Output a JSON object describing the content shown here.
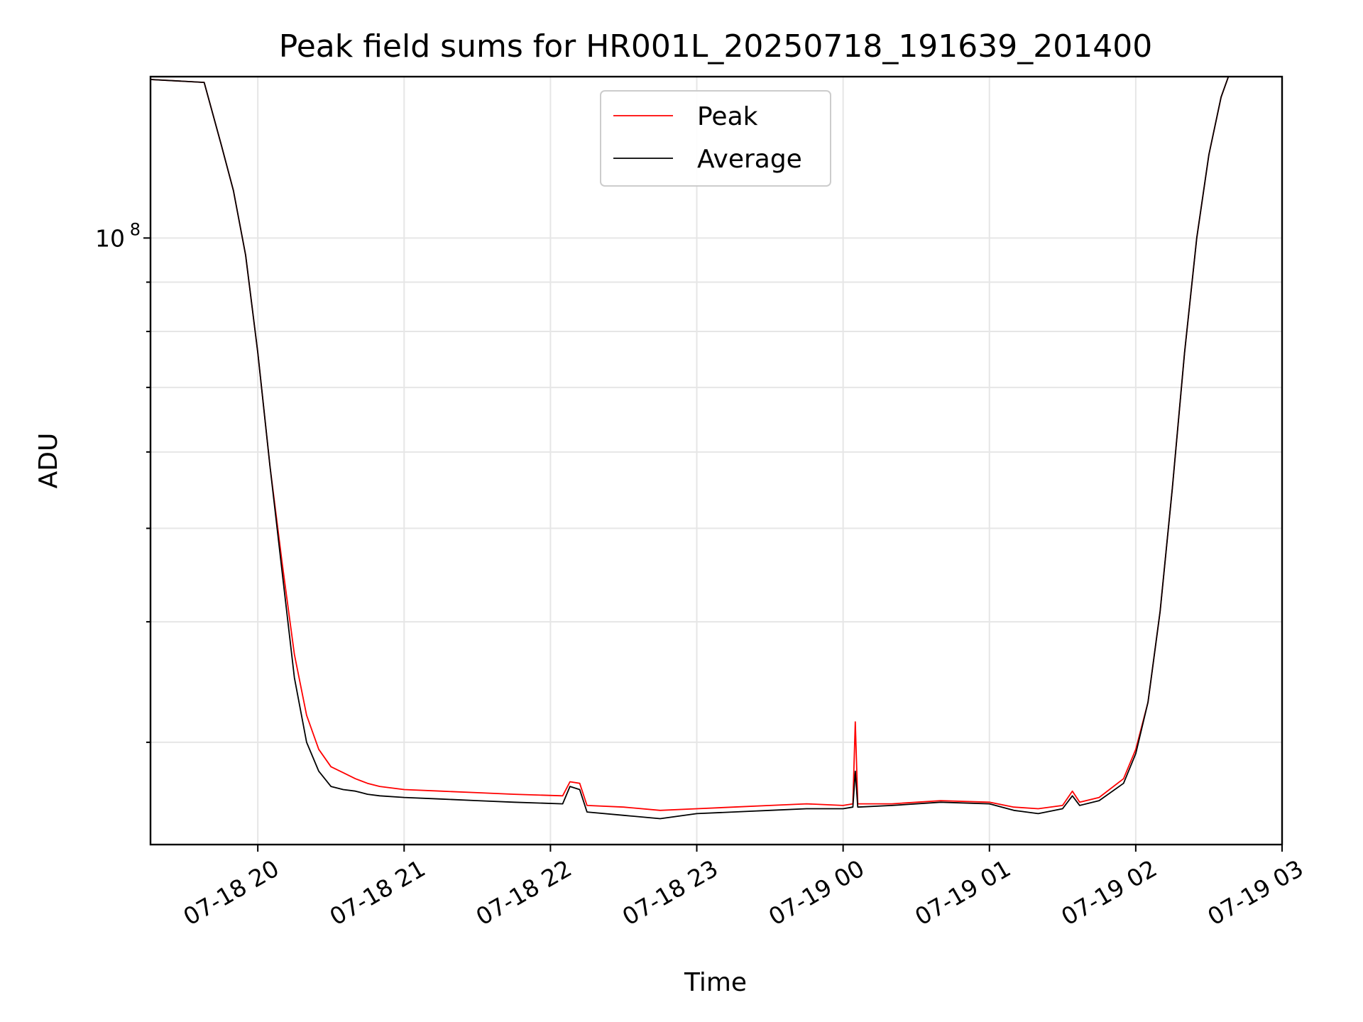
{
  "chart_data": {
    "type": "line",
    "title": "Peak field sums for HR001L_20250718_191639_201400",
    "xlabel": "Time",
    "ylabel": "ADU",
    "y_scale": "log",
    "y_major_tick_label": {
      "base": "10",
      "exponent": "8"
    },
    "xlim": [
      "2025-07-18 19:16",
      "2025-07-19 03:00"
    ],
    "ylim": [
      23500000,
      147000000
    ],
    "x_tick_labels": [
      "07-18 20",
      "07-18 21",
      "07-18 22",
      "07-18 23",
      "07-19 00",
      "07-19 01",
      "07-19 02",
      "07-19 03"
    ],
    "grid": true,
    "legend": {
      "position": "top-center"
    },
    "series": [
      {
        "name": "Peak",
        "color": "#ff0000",
        "points": [
          [
            "2025-07-18 19:16",
            146000000
          ],
          [
            "2025-07-18 19:38",
            145000000
          ],
          [
            "2025-07-18 19:45",
            125000000
          ],
          [
            "2025-07-18 19:50",
            112000000
          ],
          [
            "2025-07-18 19:55",
            96000000
          ],
          [
            "2025-07-18 20:00",
            76000000
          ],
          [
            "2025-07-18 20:05",
            58000000
          ],
          [
            "2025-07-18 20:10",
            46000000
          ],
          [
            "2025-07-18 20:15",
            37000000
          ],
          [
            "2025-07-18 20:20",
            32000000
          ],
          [
            "2025-07-18 20:25",
            29500000
          ],
          [
            "2025-07-18 20:30",
            28300000
          ],
          [
            "2025-07-18 20:35",
            27900000
          ],
          [
            "2025-07-18 20:40",
            27500000
          ],
          [
            "2025-07-18 20:45",
            27200000
          ],
          [
            "2025-07-18 20:50",
            27000000
          ],
          [
            "2025-07-18 21:00",
            26800000
          ],
          [
            "2025-07-18 21:15",
            26700000
          ],
          [
            "2025-07-18 21:30",
            26600000
          ],
          [
            "2025-07-18 21:45",
            26500000
          ],
          [
            "2025-07-18 22:05",
            26400000
          ],
          [
            "2025-07-18 22:08",
            27300000
          ],
          [
            "2025-07-18 22:12",
            27200000
          ],
          [
            "2025-07-18 22:15",
            25800000
          ],
          [
            "2025-07-18 22:30",
            25700000
          ],
          [
            "2025-07-18 22:45",
            25500000
          ],
          [
            "2025-07-18 23:00",
            25600000
          ],
          [
            "2025-07-18 23:15",
            25700000
          ],
          [
            "2025-07-18 23:30",
            25800000
          ],
          [
            "2025-07-18 23:45",
            25900000
          ],
          [
            "2025-07-19 00:00",
            25800000
          ],
          [
            "2025-07-19 00:04",
            25900000
          ],
          [
            "2025-07-19 00:05",
            31500000
          ],
          [
            "2025-07-19 00:06",
            25900000
          ],
          [
            "2025-07-19 00:20",
            25900000
          ],
          [
            "2025-07-19 00:40",
            26100000
          ],
          [
            "2025-07-19 01:00",
            26000000
          ],
          [
            "2025-07-19 01:10",
            25700000
          ],
          [
            "2025-07-19 01:20",
            25600000
          ],
          [
            "2025-07-19 01:30",
            25800000
          ],
          [
            "2025-07-19 01:34",
            26700000
          ],
          [
            "2025-07-19 01:37",
            26000000
          ],
          [
            "2025-07-19 01:45",
            26300000
          ],
          [
            "2025-07-19 01:55",
            27500000
          ],
          [
            "2025-07-19 02:00",
            29500000
          ],
          [
            "2025-07-19 02:05",
            33000000
          ],
          [
            "2025-07-19 02:10",
            41000000
          ],
          [
            "2025-07-19 02:15",
            55000000
          ],
          [
            "2025-07-19 02:20",
            76000000
          ],
          [
            "2025-07-19 02:25",
            100000000
          ],
          [
            "2025-07-19 02:30",
            122000000
          ],
          [
            "2025-07-19 02:35",
            140000000
          ],
          [
            "2025-07-19 02:38",
            147000000
          ]
        ]
      },
      {
        "name": "Average",
        "color": "#000000",
        "points": [
          [
            "2025-07-18 19:16",
            146000000
          ],
          [
            "2025-07-18 19:38",
            145000000
          ],
          [
            "2025-07-18 19:45",
            125000000
          ],
          [
            "2025-07-18 19:50",
            112000000
          ],
          [
            "2025-07-18 19:55",
            96000000
          ],
          [
            "2025-07-18 20:00",
            76000000
          ],
          [
            "2025-07-18 20:05",
            58000000
          ],
          [
            "2025-07-18 20:10",
            45000000
          ],
          [
            "2025-07-18 20:15",
            35000000
          ],
          [
            "2025-07-18 20:20",
            30000000
          ],
          [
            "2025-07-18 20:25",
            28000000
          ],
          [
            "2025-07-18 20:30",
            27000000
          ],
          [
            "2025-07-18 20:35",
            26800000
          ],
          [
            "2025-07-18 20:40",
            26700000
          ],
          [
            "2025-07-18 20:45",
            26500000
          ],
          [
            "2025-07-18 20:50",
            26400000
          ],
          [
            "2025-07-18 21:00",
            26300000
          ],
          [
            "2025-07-18 21:15",
            26200000
          ],
          [
            "2025-07-18 21:30",
            26100000
          ],
          [
            "2025-07-18 21:45",
            26000000
          ],
          [
            "2025-07-18 22:05",
            25900000
          ],
          [
            "2025-07-18 22:08",
            27000000
          ],
          [
            "2025-07-18 22:12",
            26800000
          ],
          [
            "2025-07-18 22:15",
            25400000
          ],
          [
            "2025-07-18 22:30",
            25200000
          ],
          [
            "2025-07-18 22:45",
            25000000
          ],
          [
            "2025-07-18 23:00",
            25300000
          ],
          [
            "2025-07-18 23:15",
            25400000
          ],
          [
            "2025-07-18 23:30",
            25500000
          ],
          [
            "2025-07-18 23:45",
            25600000
          ],
          [
            "2025-07-19 00:00",
            25600000
          ],
          [
            "2025-07-19 00:04",
            25700000
          ],
          [
            "2025-07-19 00:05",
            28000000
          ],
          [
            "2025-07-19 00:06",
            25700000
          ],
          [
            "2025-07-19 00:20",
            25800000
          ],
          [
            "2025-07-19 00:40",
            26000000
          ],
          [
            "2025-07-19 01:00",
            25900000
          ],
          [
            "2025-07-19 01:10",
            25500000
          ],
          [
            "2025-07-19 01:20",
            25300000
          ],
          [
            "2025-07-19 01:30",
            25600000
          ],
          [
            "2025-07-19 01:34",
            26400000
          ],
          [
            "2025-07-19 01:37",
            25800000
          ],
          [
            "2025-07-19 01:45",
            26100000
          ],
          [
            "2025-07-19 01:55",
            27200000
          ],
          [
            "2025-07-19 02:00",
            29200000
          ],
          [
            "2025-07-19 02:05",
            33000000
          ],
          [
            "2025-07-19 02:10",
            41000000
          ],
          [
            "2025-07-19 02:15",
            55000000
          ],
          [
            "2025-07-19 02:20",
            76000000
          ],
          [
            "2025-07-19 02:25",
            100000000
          ],
          [
            "2025-07-19 02:30",
            122000000
          ],
          [
            "2025-07-19 02:35",
            140000000
          ],
          [
            "2025-07-19 02:38",
            147000000
          ]
        ]
      }
    ]
  }
}
